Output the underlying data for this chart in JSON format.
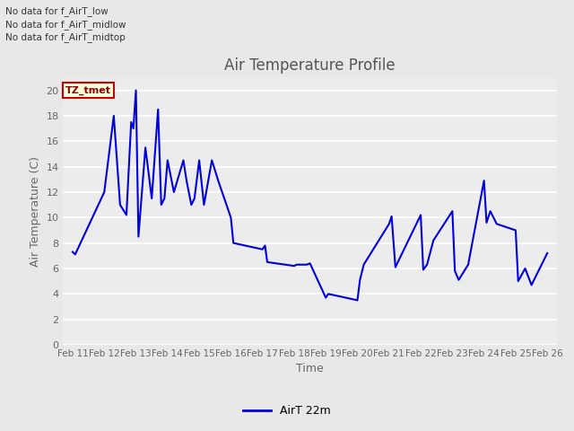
{
  "title": "Air Temperature Profile",
  "xlabel": "Time",
  "ylabel": "Air Temperature (C)",
  "legend_label": "AirT 22m",
  "annotations": [
    "No data for f_AirT_low",
    "No data for f_AirT_midlow",
    "No data for f_AirT_midtop"
  ],
  "tz_label": "TZ_tmet",
  "ylim": [
    0,
    21
  ],
  "yticks": [
    0,
    2,
    4,
    6,
    8,
    10,
    12,
    14,
    16,
    18,
    20
  ],
  "line_color": "#0000dd",
  "line_width": 1.5,
  "fig_bg_color": "#e8e8e8",
  "plot_bg_color": "#ececec",
  "title_color": "#555555",
  "tick_label_color": "#666666",
  "x_labels": [
    "Feb 11",
    "Feb 12",
    "Feb 13",
    "Feb 14",
    "Feb 15",
    "Feb 16",
    "Feb 17",
    "Feb 18",
    "Feb 19",
    "Feb 20",
    "Feb 21",
    "Feb 22",
    "Feb 23",
    "Feb 24",
    "Feb 25",
    "Feb 26"
  ],
  "x_data": [
    0.0,
    0.08,
    1.0,
    1.3,
    1.5,
    1.7,
    1.85,
    1.92,
    2.0,
    2.08,
    2.3,
    2.5,
    2.6,
    2.7,
    2.8,
    2.9,
    3.0,
    3.2,
    3.5,
    3.6,
    3.75,
    3.85,
    4.0,
    4.15,
    4.4,
    4.6,
    5.0,
    5.08,
    6.0,
    6.08,
    6.15,
    7.0,
    7.08,
    7.4,
    7.5,
    8.0,
    8.08,
    9.0,
    9.08,
    9.2,
    10.0,
    10.08,
    10.2,
    11.0,
    11.08,
    11.2,
    11.4,
    12.0,
    12.08,
    12.2,
    12.5,
    13.0,
    13.08,
    13.2,
    13.4,
    14.0,
    14.08,
    14.3,
    14.5,
    15.0
  ],
  "y_data": [
    7.3,
    7.1,
    12.0,
    18.0,
    11.0,
    10.2,
    17.5,
    17.0,
    20.0,
    8.5,
    15.5,
    11.5,
    15.0,
    18.5,
    11.0,
    11.5,
    14.5,
    12.0,
    14.5,
    12.9,
    11.0,
    11.5,
    14.5,
    11.0,
    14.5,
    12.9,
    10.0,
    8.0,
    7.5,
    7.8,
    6.5,
    6.2,
    6.3,
    6.3,
    6.4,
    3.7,
    4.0,
    3.5,
    5.1,
    6.3,
    9.5,
    10.1,
    6.1,
    10.2,
    5.9,
    6.3,
    8.2,
    10.5,
    5.8,
    5.1,
    6.3,
    12.9,
    9.6,
    10.5,
    9.5,
    9.0,
    5.0,
    6.0,
    4.7,
    7.2
  ]
}
